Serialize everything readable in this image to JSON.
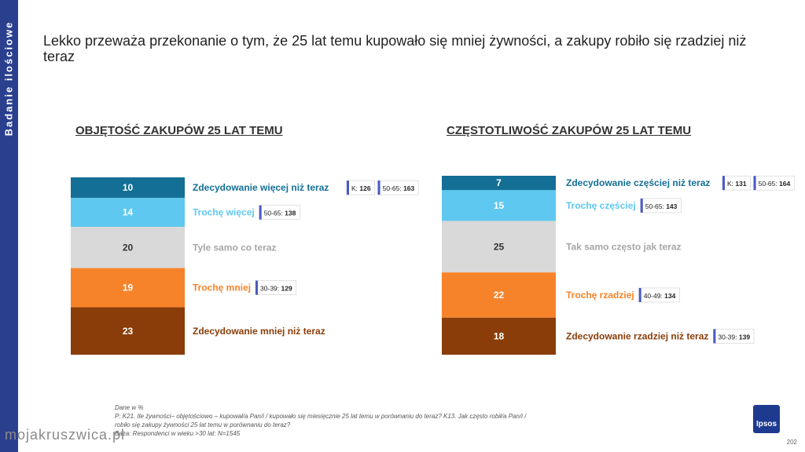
{
  "sidebar": {
    "label": "Badanie ilościowe"
  },
  "headline": "Lekko przeważa przekonanie o tym, że 25 lat temu kupowało się mniej żywności, a zakupy robiło się rzadziej niż teraz",
  "chart_data": [
    {
      "type": "bar",
      "title": "OBJĘTOŚĆ ZAKUPÓW 25 LAT TEMU",
      "categories": [
        "Zdecydowanie więcej niż teraz",
        "Trochę więcej",
        "Tyle samo co teraz",
        "Trochę mniej",
        "Zdecydowanie mniej niż teraz"
      ],
      "values": [
        10,
        14,
        20,
        19,
        23
      ],
      "colors": [
        "#136f96",
        "#5ec8f0",
        "#d9d9d9",
        "#f6832a",
        "#8a3d08"
      ],
      "label_colors": [
        "#136f96",
        "#5ec8f0",
        "#a6a6a6",
        "#f6832a",
        "#8a3d08"
      ],
      "value_label_colors": [
        "#ffffff",
        "#ffffff",
        "#333333",
        "#ffffff",
        "#ffffff"
      ],
      "tags": [
        [
          {
            "key": "K:",
            "val": "126"
          },
          {
            "key": "50-65:",
            "val": "163"
          }
        ],
        [
          {
            "key": "50-65:",
            "val": "138"
          }
        ],
        [],
        [
          {
            "key": "30-39:",
            "val": "129"
          }
        ],
        []
      ]
    },
    {
      "type": "bar",
      "title": "CZĘSTOTLIWOŚĆ ZAKUPÓW 25 LAT TEMU",
      "categories": [
        "Zdecydowanie częściej niż teraz",
        "Trochę częściej",
        "Tak samo często jak teraz",
        "Trochę rzadziej",
        "Zdecydowanie rzadziej niż teraz"
      ],
      "values": [
        7,
        15,
        25,
        22,
        18
      ],
      "colors": [
        "#136f96",
        "#5ec8f0",
        "#d9d9d9",
        "#f6832a",
        "#8a3d08"
      ],
      "label_colors": [
        "#136f96",
        "#5ec8f0",
        "#a6a6a6",
        "#f6832a",
        "#8a3d08"
      ],
      "value_label_colors": [
        "#ffffff",
        "#ffffff",
        "#333333",
        "#ffffff",
        "#ffffff"
      ],
      "tags": [
        [
          {
            "key": "K:",
            "val": "131"
          },
          {
            "key": "50-65:",
            "val": "164"
          }
        ],
        [
          {
            "key": "50-65:",
            "val": "143"
          }
        ],
        [],
        [
          {
            "key": "40-49:",
            "val": "134"
          }
        ],
        [
          {
            "key": "30-39:",
            "val": "139"
          }
        ]
      ]
    }
  ],
  "footnote": {
    "line1": "Dane w %",
    "line2": "P: K21. Ile żywności– objętościowo – kupował/a Pan/i / kupowało się miesięcznie 25 lat temu w porównaniu do teraz? K13. Jak często robił/a Pan/i /",
    "line3": "robiło się zakupy żywności 25 lat temu w porównaniu do teraz?",
    "line4": "Baza: Respondenci w wieku >30 lat: N=1545"
  },
  "watermark": "mojakruszwica.pl",
  "logo": "Ipsos",
  "page_number": "202"
}
